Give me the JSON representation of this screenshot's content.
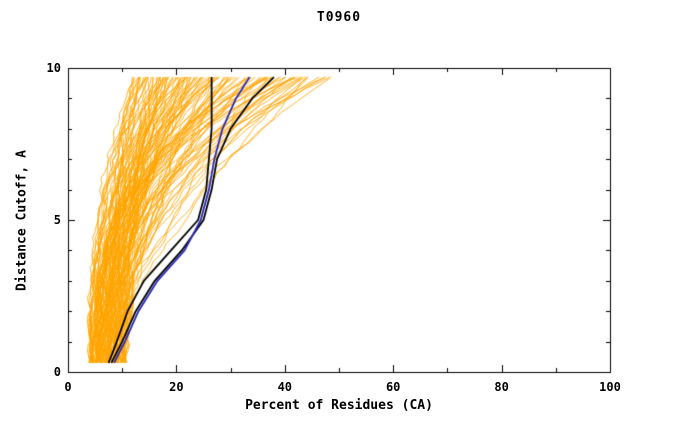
{
  "chart_data": {
    "type": "line",
    "title": "T0960",
    "xlabel": "Percent of Residues (CA)",
    "ylabel": "Distance Cutoff, A",
    "xlim": [
      0,
      100
    ],
    "ylim": [
      0,
      10
    ],
    "x_ticks": [
      0,
      20,
      40,
      60,
      80,
      100
    ],
    "x_minor_step": 10,
    "y_ticks": [
      0,
      5,
      10
    ],
    "y_minor_step": 1,
    "grid": false,
    "legend": "none",
    "colors": {
      "background": "#FFFFFF",
      "axis": "#000000",
      "ensemble": "#FFA500",
      "highlight_black": "#000000",
      "highlight_blue": "#2A2ABB"
    },
    "ensemble": {
      "description": "Dense fan of ~120 orange model accuracy curves (percent of CA residues under each distance cutoff)",
      "count": 120,
      "color": "#FFA500",
      "y_range": [
        0.3,
        9.7
      ],
      "x_start_range": [
        4,
        11
      ],
      "x_top_range": [
        12,
        50
      ],
      "seed": 42
    },
    "series": [
      {
        "name": "highlight-black-1",
        "color": "#000000",
        "width": 1.8,
        "points": [
          [
            7.5,
            0.3
          ],
          [
            9,
            1
          ],
          [
            11,
            2
          ],
          [
            14,
            3
          ],
          [
            19,
            4
          ],
          [
            24,
            5
          ],
          [
            25.5,
            6
          ],
          [
            26,
            7
          ],
          [
            26.5,
            8
          ],
          [
            26.5,
            9
          ],
          [
            26.5,
            9.7
          ]
        ]
      },
      {
        "name": "highlight-black-2",
        "color": "#000000",
        "width": 1.8,
        "points": [
          [
            8,
            0.3
          ],
          [
            10,
            1
          ],
          [
            12.5,
            2
          ],
          [
            16,
            3
          ],
          [
            21,
            4
          ],
          [
            25,
            5
          ],
          [
            26.5,
            6
          ],
          [
            27.5,
            7
          ],
          [
            30,
            8
          ],
          [
            34,
            9
          ],
          [
            38,
            9.7
          ]
        ]
      },
      {
        "name": "highlight-blue",
        "color": "#2A2ABB",
        "width": 1.8,
        "points": [
          [
            8.5,
            0.3
          ],
          [
            10.5,
            1
          ],
          [
            13,
            2
          ],
          [
            16.5,
            3
          ],
          [
            21.5,
            4
          ],
          [
            24.5,
            5
          ],
          [
            26,
            6
          ],
          [
            27,
            7
          ],
          [
            28.5,
            8
          ],
          [
            31,
            9
          ],
          [
            33.5,
            9.7
          ]
        ]
      }
    ]
  }
}
